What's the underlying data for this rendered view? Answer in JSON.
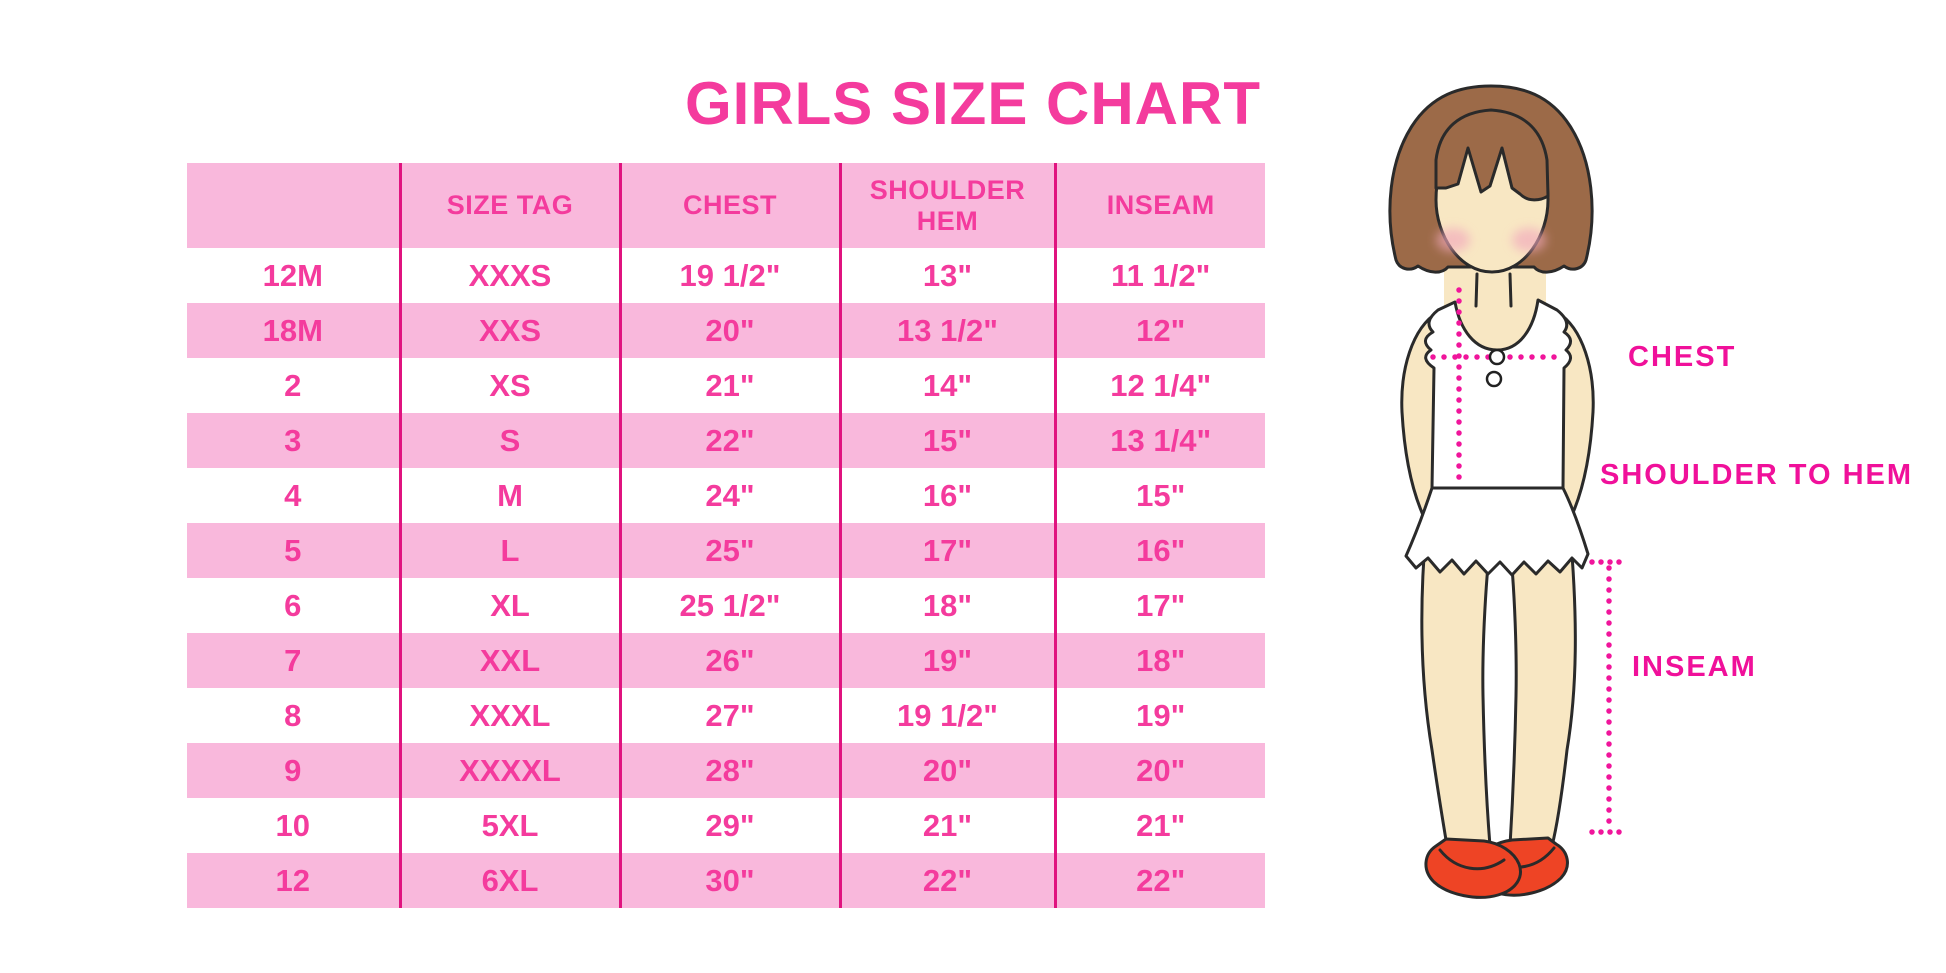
{
  "title": "GIRLS SIZE CHART",
  "chart_data": {
    "type": "table",
    "columns": [
      "",
      "SIZE TAG",
      "CHEST",
      "SHOULDER HEM",
      "INSEAM"
    ],
    "rows": [
      [
        "12M",
        "XXXS",
        "19 1/2\"",
        "13\"",
        "11 1/2\""
      ],
      [
        "18M",
        "XXS",
        "20\"",
        "13 1/2\"",
        "12\""
      ],
      [
        "2",
        "XS",
        "21\"",
        "14\"",
        "12 1/4\""
      ],
      [
        "3",
        "S",
        "22\"",
        "15\"",
        "13 1/4\""
      ],
      [
        "4",
        "M",
        "24\"",
        "16\"",
        "15\""
      ],
      [
        "5",
        "L",
        "25\"",
        "17\"",
        "16\""
      ],
      [
        "6",
        "XL",
        "25 1/2\"",
        "18\"",
        "17\""
      ],
      [
        "7",
        "XXL",
        "26\"",
        "19\"",
        "18\""
      ],
      [
        "8",
        "XXXL",
        "27\"",
        "19 1/2\"",
        "19\""
      ],
      [
        "9",
        "XXXXL",
        "28\"",
        "20\"",
        "20\""
      ],
      [
        "10",
        "5XL",
        "29\"",
        "21\"",
        "21\""
      ],
      [
        "12",
        "6XL",
        "30\"",
        "22\"",
        "22\""
      ]
    ],
    "row_shading": "alternating white and pink starting with white",
    "grid": "vertical magenta dividers only, no horizontal lines"
  },
  "diagram": {
    "labels": {
      "chest": "CHEST",
      "shoulder_to_hem": "SHOULDER TO HEM",
      "inseam": "INSEAM"
    }
  },
  "colors": {
    "accent_pink": "#f43b9d",
    "row_pink": "#f9b8dc",
    "divider": "#e0137f",
    "label_pink": "#f0109a",
    "hair_brown": "#9c6a48",
    "skin": "#f8e7c3",
    "shoe_red": "#ee4425"
  }
}
